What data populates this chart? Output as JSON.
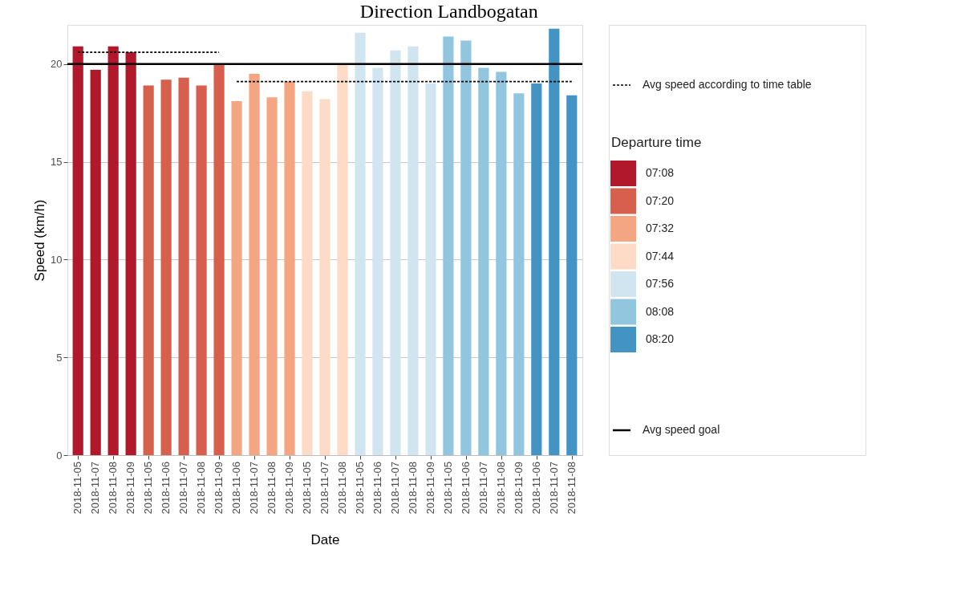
{
  "chart_data": {
    "type": "bar",
    "title": "Direction Landbogatan",
    "xlabel": "Date",
    "ylabel": "Speed (km/h)",
    "legend_title": "Departure time",
    "legend": "right",
    "grid": "y",
    "categories": [
      "2018-11-05",
      "2018-11-07",
      "2018-11-08",
      "2018-11-09",
      "2018-11-05",
      "2018-11-06",
      "2018-11-07",
      "2018-11-08",
      "2018-11-09",
      "2018-11-06",
      "2018-11-07",
      "2018-11-08",
      "2018-11-09",
      "2018-11-05",
      "2018-11-07",
      "2018-11-08",
      "2018-11-05",
      "2018-11-06",
      "2018-11-07",
      "2018-11-08",
      "2018-11-09",
      "2018-11-05",
      "2018-11-06",
      "2018-11-07",
      "2018-11-08",
      "2018-11-09",
      "2018-11-06",
      "2018-11-07",
      "2018-11-08"
    ],
    "ylim": [
      0,
      22
    ],
    "yticks": [
      0,
      5,
      10,
      15,
      20
    ],
    "series": [
      {
        "name": "07:08",
        "color": "#b2182b",
        "values": [
          20.9,
          19.7,
          20.9,
          20.6,
          null,
          null,
          null,
          null,
          null,
          null,
          null,
          null,
          null,
          null,
          null,
          null,
          null,
          null,
          null,
          null,
          null,
          null,
          null,
          null,
          null,
          null,
          null,
          null,
          null
        ]
      },
      {
        "name": "07:20",
        "color": "#d6604d",
        "values": [
          null,
          null,
          null,
          null,
          18.9,
          19.2,
          19.3,
          18.9,
          20.0,
          null,
          null,
          null,
          null,
          null,
          null,
          null,
          null,
          null,
          null,
          null,
          null,
          null,
          null,
          null,
          null,
          null,
          null,
          null,
          null
        ]
      },
      {
        "name": "07:32",
        "color": "#f4a582",
        "values": [
          null,
          null,
          null,
          null,
          null,
          null,
          null,
          null,
          null,
          18.1,
          19.5,
          18.3,
          19.1,
          null,
          null,
          null,
          null,
          null,
          null,
          null,
          null,
          null,
          null,
          null,
          null,
          null,
          null,
          null,
          null
        ]
      },
      {
        "name": "07:44",
        "color": "#fddbc7",
        "values": [
          null,
          null,
          null,
          null,
          null,
          null,
          null,
          null,
          null,
          null,
          null,
          null,
          null,
          18.6,
          18.2,
          20.0,
          null,
          null,
          null,
          null,
          null,
          null,
          null,
          null,
          null,
          null,
          null,
          null,
          null
        ]
      },
      {
        "name": "07:56",
        "color": "#d1e5f0",
        "values": [
          null,
          null,
          null,
          null,
          null,
          null,
          null,
          null,
          null,
          null,
          null,
          null,
          null,
          null,
          null,
          null,
          21.6,
          19.8,
          20.7,
          20.9,
          19.0,
          null,
          null,
          null,
          null,
          null,
          null,
          null,
          null
        ]
      },
      {
        "name": "08:08",
        "color": "#92c5de",
        "values": [
          null,
          null,
          null,
          null,
          null,
          null,
          null,
          null,
          null,
          null,
          null,
          null,
          null,
          null,
          null,
          null,
          null,
          null,
          null,
          null,
          null,
          21.4,
          21.2,
          19.8,
          19.6,
          18.5,
          null,
          null,
          null
        ]
      },
      {
        "name": "08:20",
        "color": "#4393c3",
        "values": [
          null,
          null,
          null,
          null,
          null,
          null,
          null,
          null,
          null,
          null,
          null,
          null,
          null,
          null,
          null,
          null,
          null,
          null,
          null,
          null,
          null,
          null,
          null,
          null,
          null,
          null,
          19.0,
          21.8,
          18.4
        ]
      },
      {
        "name": "Avg speed according to time table",
        "type": "line",
        "line_style": "dashed",
        "color": "#000000",
        "values": [
          20.6,
          20.6,
          20.6,
          20.6,
          20.6,
          20.6,
          20.6,
          20.6,
          20.6,
          19.1,
          19.1,
          19.1,
          19.1,
          19.1,
          19.1,
          19.1,
          19.1,
          19.1,
          19.1,
          19.1,
          19.1,
          19.1,
          19.1,
          19.1,
          19.1,
          19.1,
          19.1,
          19.1,
          19.1
        ]
      }
    ],
    "ref_lines": [
      {
        "axis": "y",
        "value": 20,
        "label": "Avg speed goal",
        "color": "#000000",
        "line_style": "solid"
      }
    ]
  }
}
